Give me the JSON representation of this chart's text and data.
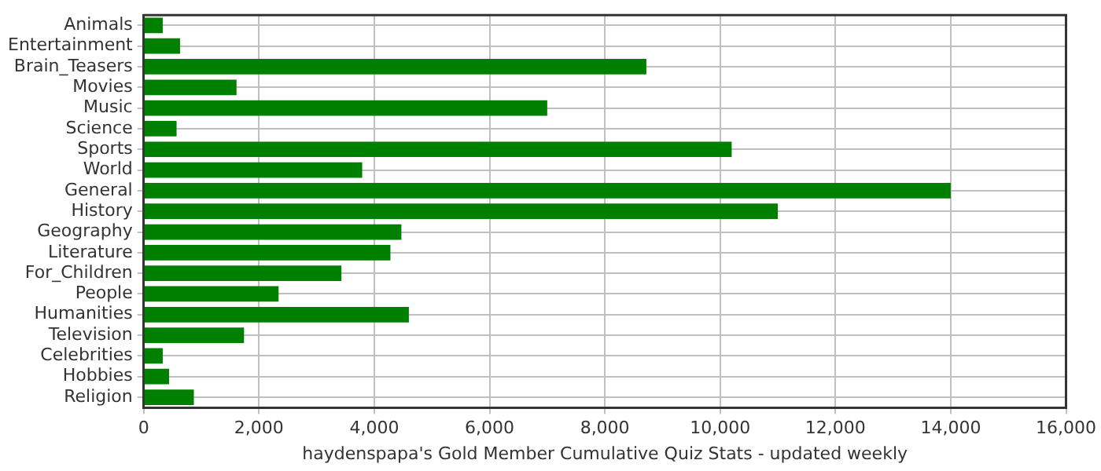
{
  "chart_data": {
    "type": "bar",
    "orientation": "horizontal",
    "xlabel": "haydenspapa's Gold Member Cumulative Quiz Stats - updated weekly",
    "categories": [
      "Animals",
      "Entertainment",
      "Brain_Teasers",
      "Movies",
      "Music",
      "Science",
      "Sports",
      "World",
      "General",
      "History",
      "Geography",
      "Literature",
      "For_Children",
      "People",
      "Humanities",
      "Television",
      "Celebrities",
      "Hobbies",
      "Religion"
    ],
    "values": [
      330,
      630,
      8720,
      1610,
      7000,
      570,
      10200,
      3790,
      14000,
      11000,
      4470,
      4280,
      3430,
      2340,
      4600,
      1740,
      330,
      440,
      870
    ],
    "color": "#008000",
    "xlim": [
      0,
      16000
    ],
    "xticks": [
      0,
      {
        "value": 2000,
        "label": "2,000"
      },
      {
        "value": 4000,
        "label": "4,000"
      },
      {
        "value": 6000,
        "label": "6,000"
      },
      {
        "value": 8000,
        "label": "8,000"
      },
      {
        "value": 10000,
        "label": "10,000"
      },
      {
        "value": 12000,
        "label": "12,000"
      },
      {
        "value": 14000,
        "label": "14,000"
      },
      {
        "value": 16000,
        "label": "16,000"
      }
    ],
    "grid": true,
    "legend": false
  }
}
